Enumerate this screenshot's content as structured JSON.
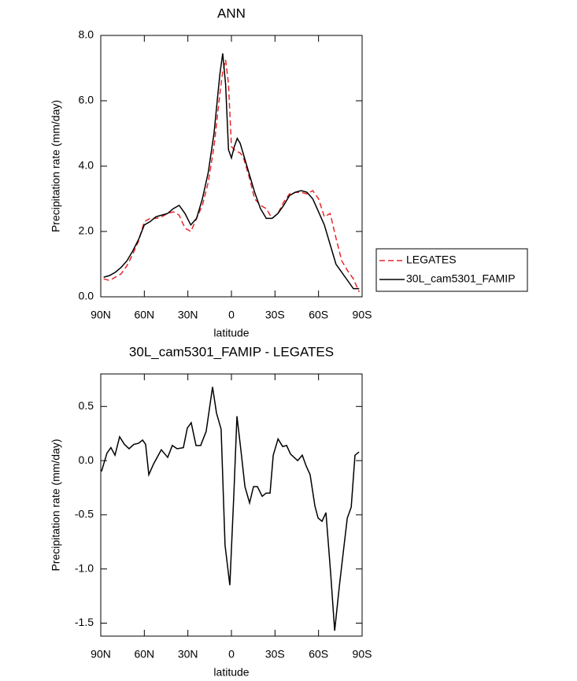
{
  "chart_data": [
    {
      "type": "line",
      "title": "ANN",
      "xlabel": "latitude",
      "ylabel": "Precipitation rate (mm/day)",
      "x": [
        88,
        84,
        80,
        76,
        72,
        68,
        64,
        60,
        56,
        52,
        48,
        44,
        40,
        36,
        32,
        28,
        24,
        20,
        16,
        12,
        8,
        6,
        4,
        2,
        0,
        -2,
        -4,
        -6,
        -8,
        -12,
        -16,
        -20,
        -24,
        -28,
        -32,
        -36,
        -40,
        -44,
        -48,
        -52,
        -56,
        -60,
        -64,
        -68,
        -72,
        -76,
        -80,
        -84,
        -88
      ],
      "series": [
        {
          "name": "LEGATES",
          "color": "#e8262a",
          "style": "dashed",
          "values": [
            0.55,
            0.5,
            0.6,
            0.7,
            0.95,
            1.3,
            1.7,
            2.3,
            2.4,
            2.4,
            2.45,
            2.55,
            2.6,
            2.5,
            2.1,
            2.0,
            2.4,
            2.8,
            3.5,
            4.6,
            6.2,
            6.9,
            7.25,
            6.5,
            4.6,
            4.5,
            4.45,
            4.4,
            4.3,
            3.7,
            3.0,
            2.8,
            2.7,
            2.4,
            2.55,
            2.9,
            3.15,
            3.2,
            3.2,
            3.15,
            3.25,
            3.0,
            2.45,
            2.55,
            1.8,
            1.1,
            0.8,
            0.55,
            0.15
          ]
        },
        {
          "name": "30L_cam5301_FAMIP",
          "color": "#000000",
          "style": "solid",
          "values": [
            0.6,
            0.65,
            0.75,
            0.9,
            1.1,
            1.4,
            1.75,
            2.2,
            2.3,
            2.45,
            2.5,
            2.55,
            2.7,
            2.8,
            2.55,
            2.2,
            2.4,
            3.0,
            3.8,
            5.0,
            6.8,
            7.45,
            6.5,
            4.5,
            4.25,
            4.6,
            4.85,
            4.7,
            4.4,
            3.8,
            3.2,
            2.7,
            2.4,
            2.4,
            2.55,
            2.8,
            3.1,
            3.2,
            3.25,
            3.2,
            3.0,
            2.6,
            2.2,
            1.6,
            1.0,
            0.75,
            0.5,
            0.25,
            0.25
          ]
        }
      ],
      "xlim": [
        90,
        -90
      ],
      "xticks": [
        {
          "value": 90,
          "label": "90N"
        },
        {
          "value": 60,
          "label": "60N"
        },
        {
          "value": 30,
          "label": "30N"
        },
        0,
        {
          "value": -30,
          "label": "30S"
        },
        {
          "value": -60,
          "label": "60S"
        },
        {
          "value": -90,
          "label": "90S"
        }
      ],
      "ylim": [
        0,
        8
      ],
      "yticks": [
        {
          "value": 0,
          "label": "0.0"
        },
        {
          "value": 2,
          "label": "2.0"
        },
        {
          "value": 4,
          "label": "4.0"
        },
        {
          "value": 6,
          "label": "6.0"
        },
        {
          "value": 8,
          "label": "8.0"
        }
      ],
      "legend": "outside-right"
    },
    {
      "type": "line",
      "title": "30L_cam5301_FAMIP - LEGATES",
      "xlabel": "latitude",
      "ylabel": "Precipitation rate (mm/day)",
      "x": [
        89.5,
        85.7,
        83.0,
        80.2,
        77.0,
        73.7,
        70.5,
        67.2,
        64.0,
        61.2,
        59.1,
        56.9,
        53.6,
        48.3,
        43.9,
        40.7,
        37.4,
        33.1,
        30.4,
        27.7,
        24.4,
        21.2,
        17.4,
        13.0,
        10.3,
        7.1,
        4.4,
        1.1,
        -1.7,
        -3.8,
        -6.5,
        -9.3,
        -12.5,
        -15.2,
        -17.9,
        -21.2,
        -23.9,
        -26.6,
        -28.8,
        -32.1,
        -35.3,
        -38.0,
        -40.7,
        -45.6,
        -48.8,
        -51.5,
        -54.2,
        -57.5,
        -59.7,
        -62.4,
        -65.1,
        -68.4,
        -71.1,
        -74.4,
        -77.6,
        -79.8,
        -82.5,
        -85.1,
        -87.9
      ],
      "series": [
        {
          "name": null,
          "color": "#000000",
          "style": "solid",
          "values": [
            -0.1,
            0.07,
            0.12,
            0.05,
            0.22,
            0.15,
            0.11,
            0.15,
            0.16,
            0.19,
            0.15,
            -0.13,
            -0.03,
            0.1,
            0.03,
            0.14,
            0.11,
            0.12,
            0.3,
            0.35,
            0.14,
            0.14,
            0.27,
            0.68,
            0.44,
            0.29,
            -0.78,
            -1.15,
            -0.3,
            0.41,
            0.1,
            -0.24,
            -0.39,
            -0.24,
            -0.24,
            -0.33,
            -0.3,
            -0.3,
            0.05,
            0.2,
            0.13,
            0.14,
            0.06,
            0.0,
            0.05,
            -0.05,
            -0.13,
            -0.42,
            -0.53,
            -0.56,
            -0.48,
            -1.05,
            -1.57,
            -1.15,
            -0.78,
            -0.53,
            -0.43,
            0.05,
            0.08
          ]
        }
      ],
      "xlim": [
        90,
        -90
      ],
      "xticks": [
        {
          "value": 90,
          "label": "90N"
        },
        {
          "value": 60,
          "label": "60N"
        },
        {
          "value": 30,
          "label": "30N"
        },
        0,
        {
          "value": -30,
          "label": "30S"
        },
        {
          "value": -60,
          "label": "60S"
        },
        {
          "value": -90,
          "label": "90S"
        }
      ],
      "ylim": [
        -1.62,
        0.8
      ],
      "yticks": [
        0.5,
        {
          "value": 0,
          "label": "0.0"
        },
        -0.5,
        {
          "value": -1,
          "label": "-1.0"
        },
        -1.5
      ]
    }
  ]
}
